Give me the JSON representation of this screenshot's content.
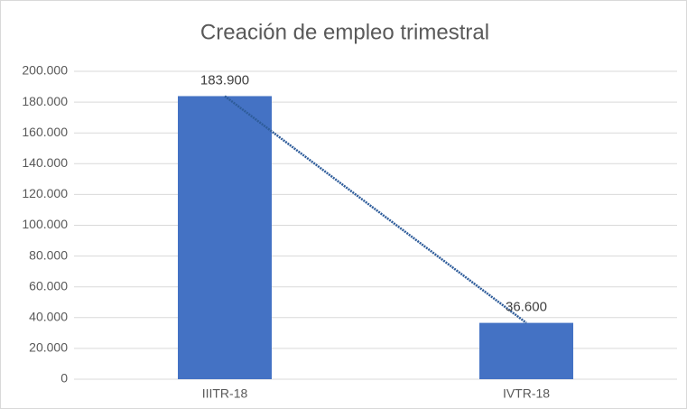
{
  "chart_data": {
    "type": "bar",
    "title": "Creación de empleo trimestral",
    "categories": [
      "IIITR-18",
      "IVTR-18"
    ],
    "values": [
      183900,
      36600
    ],
    "value_labels": [
      "183.900",
      "36.600"
    ],
    "color": "#4472c4",
    "trendline_color": "#2e5c9a",
    "ylim": [
      0,
      200000
    ],
    "yticks": [
      0,
      {
        "value": 20000,
        "label": "20.000"
      },
      {
        "value": 40000,
        "label": "40.000"
      },
      {
        "value": 60000,
        "label": "60.000"
      },
      {
        "value": 80000,
        "label": "80.000"
      },
      {
        "value": 100000,
        "label": "100.000"
      },
      {
        "value": 120000,
        "label": "120.000"
      },
      {
        "value": 140000,
        "label": "140.000"
      },
      {
        "value": 160000,
        "label": "160.000"
      },
      {
        "value": 180000,
        "label": "180.000"
      },
      {
        "value": 200000,
        "label": "200.000"
      }
    ],
    "grid": true
  }
}
